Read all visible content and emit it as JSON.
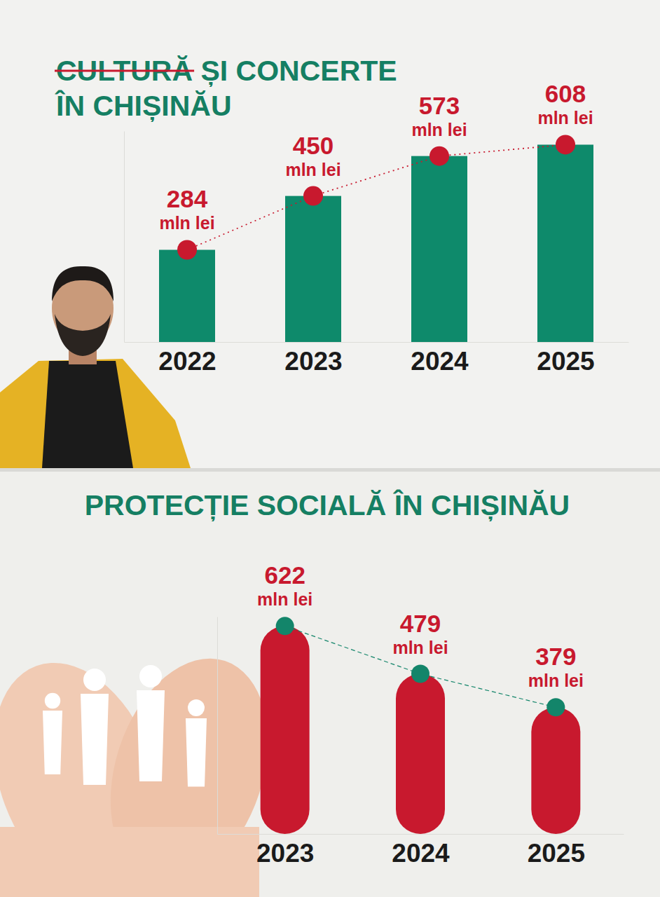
{
  "chart_data": [
    {
      "type": "bar",
      "title": "CULTURĂ ȘI CONCERTE\nÎN CHIȘINĂU",
      "categories": [
        "2022",
        "2023",
        "2024",
        "2025"
      ],
      "values": [
        284,
        450,
        573,
        608
      ],
      "value_labels": [
        "284\nmln lei",
        "450\nmln lei",
        "573\nmln lei",
        "608\nmln lei"
      ],
      "color": "#0e8a6b",
      "ylim": [
        0,
        650
      ],
      "tick_labels": "x",
      "data_labels": true,
      "marker": "circle",
      "line_style": "dotted"
    },
    {
      "type": "bar",
      "title": "PROTECȚIE SOCIALĂ ÎN CHIȘINĂU",
      "categories": [
        "2023",
        "2024",
        "2025"
      ],
      "values": [
        622,
        479,
        379
      ],
      "value_labels": [
        "622\nmln lei",
        "479\nmln lei",
        "379\nmln lei"
      ],
      "color": "#c8192e",
      "ylim": [
        0,
        650
      ],
      "tick_labels": "x",
      "data_labels": true,
      "marker": "circle",
      "line_style": "dashed"
    }
  ]
}
